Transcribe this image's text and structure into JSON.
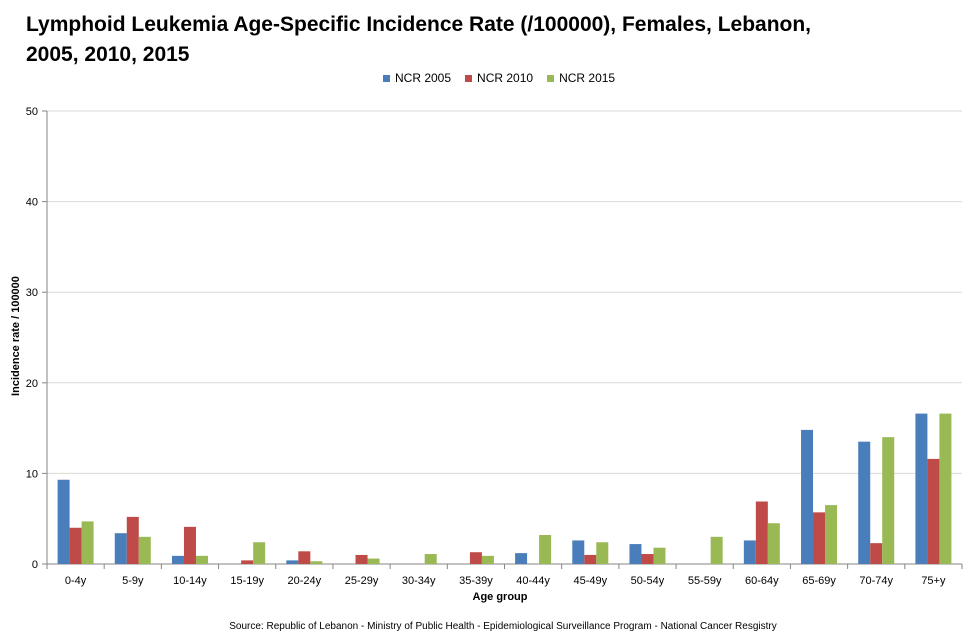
{
  "chart_data": {
    "type": "bar",
    "title": "Lymphoid Leukemia Age-Specific Incidence Rate (/100000),  Females, Lebanon, 2005, 2010, 2015",
    "xlabel": "Age group",
    "ylabel": "Incidence  rate / 100000",
    "ylim": [
      0,
      50
    ],
    "yticks": [
      0,
      10,
      20,
      30,
      40,
      50
    ],
    "grid": true,
    "legend_position": "top",
    "categories": [
      "0-4y",
      "5-9y",
      "10-14y",
      "15-19y",
      "20-24y",
      "25-29y",
      "30-34y",
      "35-39y",
      "40-44y",
      "45-49y",
      "50-54y",
      "55-59y",
      "60-64y",
      "65-69y",
      "70-74y",
      "75+y"
    ],
    "series": [
      {
        "name": "NCR 2005",
        "color": "#4a7ebb",
        "values": [
          9.3,
          3.4,
          0.9,
          0,
          0.4,
          0,
          0,
          0,
          1.2,
          2.6,
          2.2,
          0,
          2.6,
          14.8,
          13.5,
          16.6
        ]
      },
      {
        "name": "NCR 2010",
        "color": "#be4b48",
        "values": [
          4.0,
          5.2,
          4.1,
          0.4,
          1.4,
          1.0,
          0,
          1.3,
          0,
          1.0,
          1.1,
          0,
          6.9,
          5.7,
          2.3,
          11.6
        ]
      },
      {
        "name": "NCR 2015",
        "color": "#98b954",
        "values": [
          4.7,
          3.0,
          0.9,
          2.4,
          0.3,
          0.6,
          1.1,
          0.9,
          3.2,
          2.4,
          1.8,
          3.0,
          4.5,
          6.5,
          14.0,
          16.6
        ]
      }
    ],
    "source": "Source: Republic of Lebanon - Ministry of Public Health - Epidemiological Surveillance Program - National Cancer Resgistry"
  }
}
